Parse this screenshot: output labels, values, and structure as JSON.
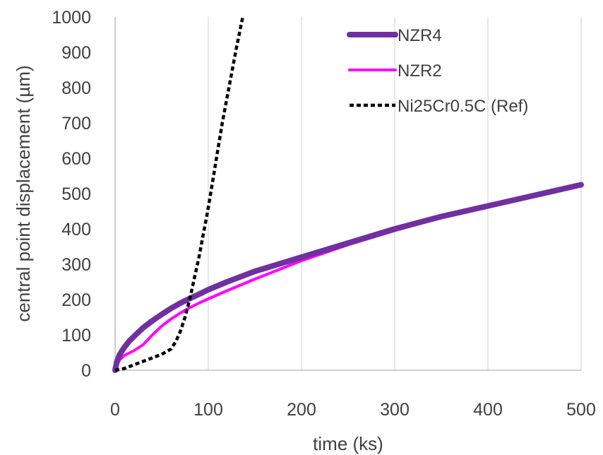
{
  "chart_data": {
    "type": "line",
    "title": "",
    "xlabel": "time (ks)",
    "ylabel": "central point displacement (µm)",
    "xlim": [
      0,
      500
    ],
    "ylim": [
      0,
      1000
    ],
    "xticks": [
      0,
      100,
      200,
      300,
      400,
      500
    ],
    "yticks": [
      0,
      100,
      200,
      300,
      400,
      500,
      600,
      700,
      800,
      900,
      1000
    ],
    "grid": "vertical",
    "legend_position": "top-right",
    "series": [
      {
        "name": "NZR4",
        "color": "#7030a0",
        "style": "solid-thick",
        "x": [
          0,
          2,
          5,
          10,
          15,
          20,
          30,
          40,
          50,
          60,
          70,
          80,
          90,
          100,
          120,
          150,
          200,
          250,
          300,
          350,
          400,
          450,
          500
        ],
        "y": [
          0,
          25,
          45,
          65,
          82,
          95,
          120,
          140,
          158,
          175,
          190,
          203,
          215,
          228,
          250,
          280,
          320,
          360,
          400,
          435,
          465,
          495,
          525
        ]
      },
      {
        "name": "NZR2",
        "color": "#ff00ff",
        "style": "solid",
        "x": [
          0,
          2,
          5,
          10,
          20,
          30,
          40,
          50,
          60,
          70,
          80,
          90,
          100,
          120,
          150,
          200,
          250,
          300,
          360
        ],
        "y": [
          0,
          15,
          30,
          42,
          55,
          72,
          100,
          125,
          145,
          162,
          177,
          190,
          202,
          225,
          258,
          310,
          355,
          395,
          440
        ]
      },
      {
        "name": "Ni25Cr0.5C (Ref)",
        "color": "#000000",
        "style": "dashed",
        "x": [
          0,
          5,
          10,
          20,
          30,
          40,
          50,
          60,
          65,
          70,
          75,
          80,
          85,
          90,
          95,
          100,
          105,
          110,
          115,
          120,
          125,
          130,
          135,
          137
        ],
        "y": [
          0,
          2,
          5,
          15,
          25,
          35,
          45,
          60,
          80,
          110,
          150,
          200,
          260,
          320,
          390,
          460,
          540,
          620,
          700,
          770,
          840,
          910,
          975,
          1000
        ]
      }
    ]
  }
}
